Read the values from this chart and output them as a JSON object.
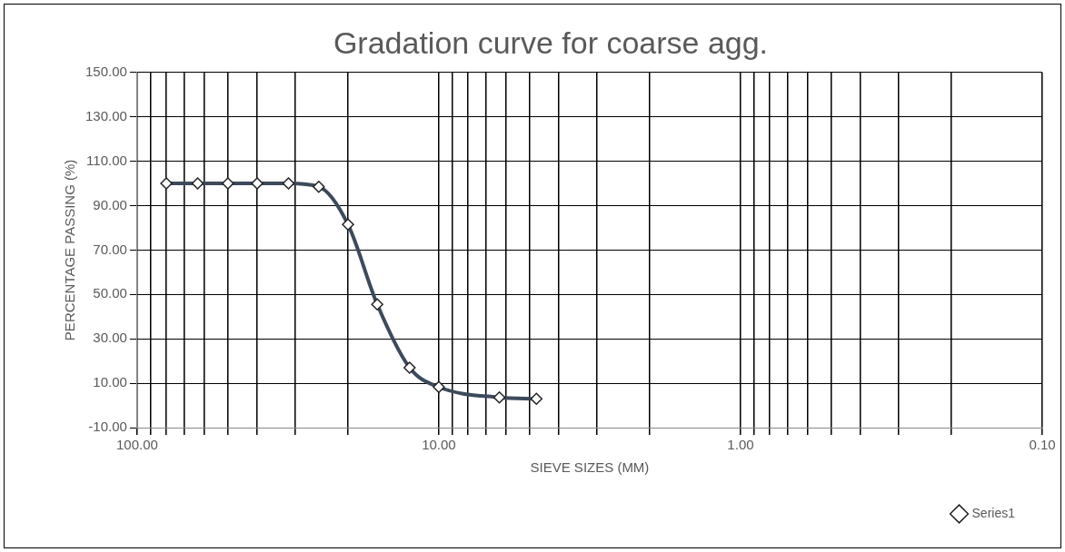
{
  "chart_data": {
    "type": "line",
    "title": "Gradation curve for coarse agg.",
    "xlabel": "SIEVE SIZES (MM)",
    "ylabel": "PERCENTAGE PASSING (%)",
    "x": [
      80,
      63,
      50,
      40,
      31.5,
      25,
      20,
      16,
      12.5,
      10,
      6.3,
      4.75
    ],
    "series": [
      {
        "name": "Series1",
        "color": "#3c4a5c",
        "values": [
          100,
          100,
          100,
          100,
          100,
          98.5,
          81.5,
          45.5,
          17,
          8.3,
          3.6,
          3
        ]
      }
    ],
    "log": "x",
    "xlim": [
      100,
      0.1
    ],
    "xticks": [
      {
        "value": 100,
        "label": "100.00"
      },
      {
        "value": 90,
        "label": null
      },
      {
        "value": 80,
        "label": null
      },
      {
        "value": 70,
        "label": null
      },
      {
        "value": 60,
        "label": null
      },
      {
        "value": 50,
        "label": null
      },
      {
        "value": 40,
        "label": null
      },
      {
        "value": 30,
        "label": null
      },
      {
        "value": 20,
        "label": null
      },
      {
        "value": 10,
        "label": "10.00"
      },
      {
        "value": 9,
        "label": null
      },
      {
        "value": 8,
        "label": null
      },
      {
        "value": 7,
        "label": null
      },
      {
        "value": 6,
        "label": null
      },
      {
        "value": 5,
        "label": null
      },
      {
        "value": 4,
        "label": null
      },
      {
        "value": 3,
        "label": null
      },
      {
        "value": 2,
        "label": null
      },
      {
        "value": 1,
        "label": "1.00"
      },
      {
        "value": 0.9,
        "label": null
      },
      {
        "value": 0.8,
        "label": null
      },
      {
        "value": 0.7,
        "label": null
      },
      {
        "value": 0.6,
        "label": null
      },
      {
        "value": 0.5,
        "label": null
      },
      {
        "value": 0.4,
        "label": null
      },
      {
        "value": 0.3,
        "label": null
      },
      {
        "value": 0.2,
        "label": null
      },
      {
        "value": 0.1,
        "label": "0.10"
      }
    ],
    "ylim": [
      -10,
      150
    ],
    "yticks": [
      {
        "value": -10,
        "label": "-10.00"
      },
      {
        "value": 10,
        "label": "10.00"
      },
      {
        "value": 30,
        "label": "30.00"
      },
      {
        "value": 50,
        "label": "50.00"
      },
      {
        "value": 70,
        "label": "70.00"
      },
      {
        "value": 90,
        "label": "90.00"
      },
      {
        "value": 110,
        "label": "110.00"
      },
      {
        "value": 130,
        "label": "130.00"
      },
      {
        "value": 150,
        "label": "150.00"
      }
    ],
    "grid": true,
    "legend": "bottom right",
    "marker": "diamond",
    "line_style": "solid"
  }
}
